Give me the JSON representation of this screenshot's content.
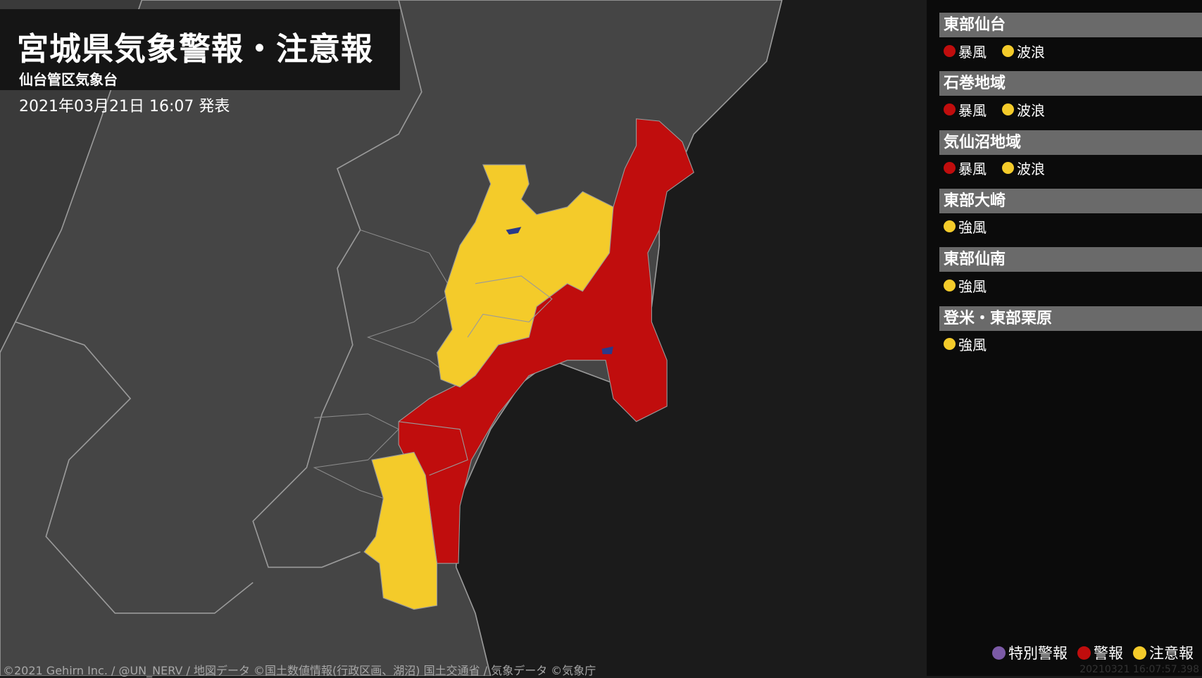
{
  "header": {
    "title": "宮城県気象警報・注意報",
    "subtitle": "仙台管区気象台",
    "issued": "2021年03月21日 16:07 発表"
  },
  "colors": {
    "special_warning": "#7b5aa6",
    "warning": "#c00d0d",
    "advisory": "#f4cb2a",
    "land": "#454545",
    "sea": "#1b1b1b"
  },
  "areas": [
    {
      "name": "東部仙台",
      "items": [
        {
          "label": "暴風",
          "level": "warning"
        },
        {
          "label": "波浪",
          "level": "advisory"
        }
      ]
    },
    {
      "name": "石巻地域",
      "items": [
        {
          "label": "暴風",
          "level": "warning"
        },
        {
          "label": "波浪",
          "level": "advisory"
        }
      ]
    },
    {
      "name": "気仙沼地域",
      "items": [
        {
          "label": "暴風",
          "level": "warning"
        },
        {
          "label": "波浪",
          "level": "advisory"
        }
      ]
    },
    {
      "name": "東部大崎",
      "items": [
        {
          "label": "強風",
          "level": "advisory"
        }
      ]
    },
    {
      "name": "東部仙南",
      "items": [
        {
          "label": "強風",
          "level": "advisory"
        }
      ]
    },
    {
      "name": "登米・東部栗原",
      "items": [
        {
          "label": "強風",
          "level": "advisory"
        }
      ]
    }
  ],
  "legend": [
    {
      "label": "特別警報",
      "level": "special_warning"
    },
    {
      "label": "警報",
      "level": "warning"
    },
    {
      "label": "注意報",
      "level": "advisory"
    }
  ],
  "timestamp": "20210321 16:07:57.398",
  "credit": "©2021 Gehirn Inc. / @UN_NERV / 地図データ ©国土数値情報(行政区画、湖沼) 国土交通省 / 気象データ ©気象庁"
}
